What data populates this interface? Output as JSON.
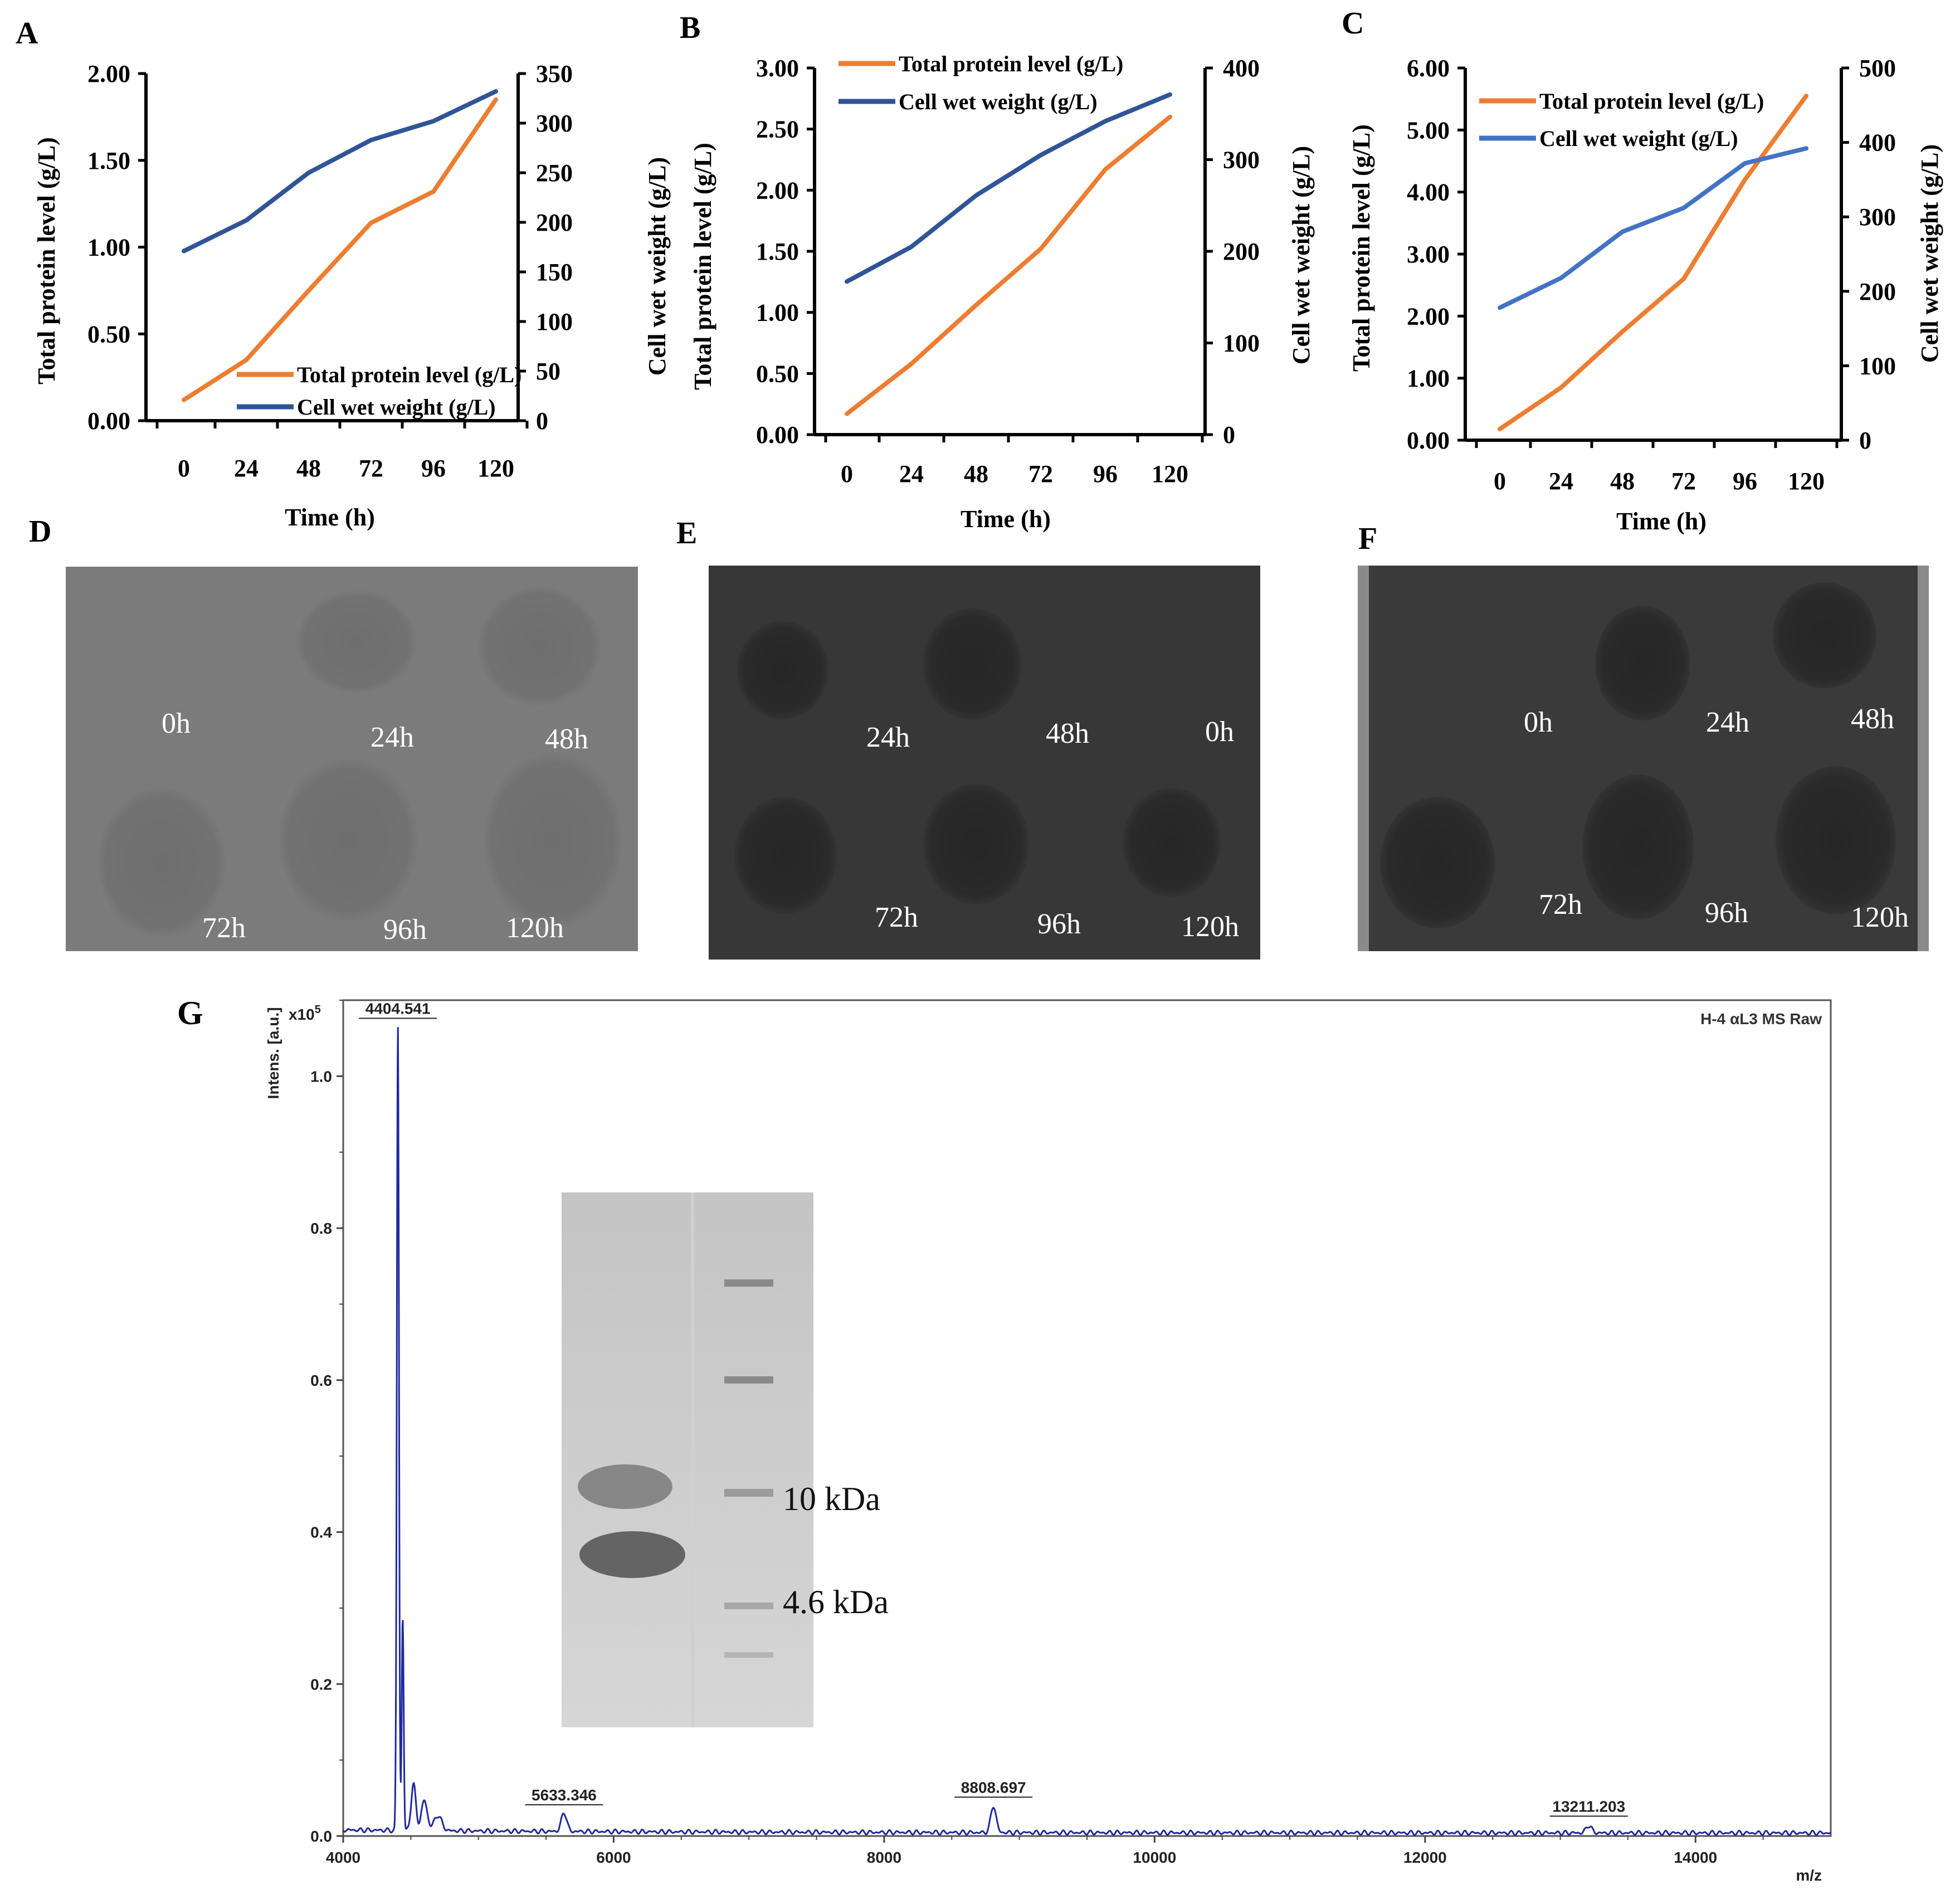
{
  "panels": {
    "A": "A",
    "B": "B",
    "C": "C",
    "D": "D",
    "E": "E",
    "F": "F",
    "G": "G"
  },
  "colors": {
    "protein": "#ED7D31",
    "cell_dark": "#2F5597",
    "cell_light": "#4472C4",
    "spectrum": "#1f2a9e"
  },
  "chart_data": [
    {
      "id": "A",
      "type": "line",
      "categories": [
        "0",
        "24",
        "48",
        "72",
        "96",
        "120"
      ],
      "x": [
        0,
        24,
        48,
        72,
        96,
        120
      ],
      "xlabel": "Time (h)",
      "ylabel": "Total protein level (g/L)",
      "y2label": "",
      "ylim": [
        0,
        2
      ],
      "y2lim": [
        0,
        350
      ],
      "yticks": [
        "0.00",
        "0.50",
        "1.00",
        "1.50",
        "2.00"
      ],
      "y2ticks": [
        "0",
        "50",
        "100",
        "150",
        "200",
        "250",
        "300",
        "350"
      ],
      "legend": "bottom-right",
      "series": [
        {
          "name": "Total protein level (g/L)",
          "axis": "left",
          "color": "#ED7D31",
          "values": [
            0.12,
            0.35,
            0.75,
            1.14,
            1.32,
            1.85
          ]
        },
        {
          "name": "Cell wet weight (g/L)",
          "axis": "right",
          "color": "#2F5597",
          "values": [
            171,
            202,
            250,
            283,
            302,
            332
          ]
        }
      ]
    },
    {
      "id": "B",
      "type": "line",
      "categories": [
        "0",
        "24",
        "48",
        "72",
        "96",
        "120"
      ],
      "x": [
        0,
        24,
        48,
        72,
        96,
        120
      ],
      "xlabel": "Time (h)",
      "ylabel": "Total protein level (g/L)",
      "ylabel_extra": "Cell wet weight (g/L)",
      "y2label": "Cell wet weight (g/L)",
      "ylim": [
        0,
        3
      ],
      "y2lim": [
        0,
        400
      ],
      "yticks": [
        "0.00",
        "0.50",
        "1.00",
        "1.50",
        "2.00",
        "2.50",
        "3.00"
      ],
      "y2ticks": [
        "0",
        "100",
        "200",
        "300",
        "400"
      ],
      "legend": "top-right",
      "series": [
        {
          "name": "Total protein level (g/L)",
          "axis": "left",
          "color": "#ED7D31",
          "values": [
            0.17,
            0.58,
            1.06,
            1.52,
            2.17,
            2.6
          ]
        },
        {
          "name": "Cell wet weight (g/L)",
          "axis": "right",
          "color": "#2F5597",
          "values": [
            167,
            205,
            261,
            305,
            342,
            371
          ]
        }
      ]
    },
    {
      "id": "C",
      "type": "line",
      "categories": [
        "0",
        "24",
        "48",
        "72",
        "96",
        "120"
      ],
      "x": [
        0,
        24,
        48,
        72,
        96,
        120
      ],
      "xlabel": "Time (h)",
      "ylabel": "Total protein level (g/L)",
      "y2label": "Cell wet weight (g/L)",
      "ylim": [
        0,
        6
      ],
      "y2lim": [
        0,
        500
      ],
      "yticks": [
        "0.00",
        "1.00",
        "2.00",
        "3.00",
        "4.00",
        "5.00",
        "6.00"
      ],
      "y2ticks": [
        "0",
        "100",
        "200",
        "300",
        "400",
        "500"
      ],
      "legend": "top-right",
      "series": [
        {
          "name": "Total protein level (g/L)",
          "axis": "left",
          "color": "#ED7D31",
          "values": [
            0.18,
            0.85,
            1.75,
            2.6,
            4.2,
            5.55
          ]
        },
        {
          "name": "Cell wet weight (g/L)",
          "axis": "right",
          "color": "#4472C4",
          "values": [
            178,
            218,
            280,
            312,
            372,
            392
          ]
        }
      ]
    },
    {
      "id": "G",
      "type": "line",
      "title": "H-4 αL3 MS Raw",
      "xlabel": "m/z",
      "ylabel": "Intens. [a.u.]",
      "yunit": "x10",
      "yunit_exp": "5",
      "xlim": [
        4000,
        15000
      ],
      "ylim": [
        0,
        1.1
      ],
      "xticks": [
        "4000",
        "6000",
        "8000",
        "10000",
        "12000",
        "14000"
      ],
      "yticks": [
        "0.0",
        "0.2",
        "0.4",
        "0.6",
        "0.8",
        "1.0"
      ],
      "peaks": [
        {
          "label": "4404.541",
          "x": 4404.541,
          "y": 1.06
        },
        {
          "label": "5633.346",
          "x": 5633.346,
          "y": 0.025
        },
        {
          "label": "8808.697",
          "x": 8808.697,
          "y": 0.035
        },
        {
          "label": "13211.203",
          "x": 13211.203,
          "y": 0.01
        }
      ],
      "inset_labels": {
        "band_10": "10 kDa",
        "band_46": "4.6 kDa"
      }
    }
  ],
  "plates": {
    "D": [
      "0h",
      "24h",
      "48h",
      "72h",
      "96h",
      "120h"
    ],
    "E": [
      "24h",
      "48h",
      "0h",
      "72h",
      "96h",
      "120h"
    ],
    "F": [
      "0h",
      "24h",
      "48h",
      "72h",
      "96h",
      "120h"
    ]
  }
}
